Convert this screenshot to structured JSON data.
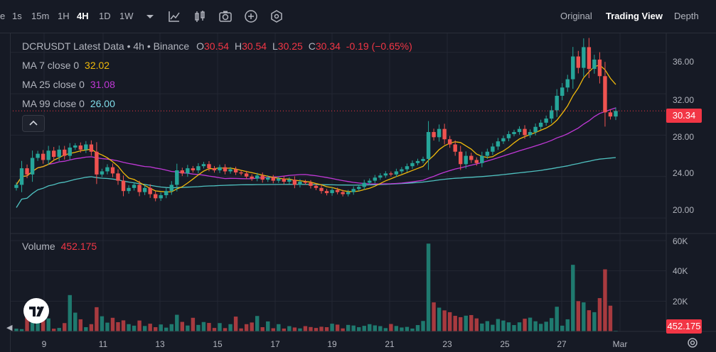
{
  "toolbar": {
    "intervals": [
      "e",
      "1s",
      "15m",
      "1H",
      "4H",
      "1D",
      "1W"
    ],
    "active_interval": "4H",
    "views": [
      "Original",
      "Trading View",
      "Depth"
    ],
    "active_view": "Trading View"
  },
  "legend": {
    "title": "DCRUSDT Latest Data • 4h • Binance",
    "o_label": "O",
    "o": "30.54",
    "h_label": "H",
    "h": "30.54",
    "l_label": "L",
    "l": "30.25",
    "c_label": "C",
    "c": "30.34",
    "change": "-0.19 (−0.65%)",
    "ma7_label": "MA 7 close 0",
    "ma7": "32.02",
    "ma25_label": "MA 25 close 0",
    "ma25": "31.08",
    "ma99_label": "MA 99 close 0",
    "ma99": "26.00",
    "volume_label": "Volume",
    "volume": "452.175"
  },
  "price_axis": {
    "ticks": [
      "36.00",
      "32.00",
      "28.00",
      "24.00",
      "20.00"
    ],
    "current": "30.34"
  },
  "volume_axis": {
    "ticks": [
      "60K",
      "40K",
      "20K"
    ],
    "current": "452.175"
  },
  "time_axis": {
    "ticks": [
      "9",
      "11",
      "13",
      "15",
      "17",
      "19",
      "21",
      "23",
      "25",
      "27",
      "Mar"
    ]
  },
  "colors": {
    "up": "#26a69a",
    "down": "#ef5350",
    "ma7": "#f0b90b",
    "ma25": "#c038d6",
    "ma99": "#4fc1c0",
    "current": "#f23645"
  },
  "chart_data": {
    "type": "candlestick",
    "title": "DCRUSDT Latest Data • 4h • Binance",
    "interval": "4h",
    "price_range": [
      18.5,
      37.9
    ],
    "volume_range": [
      0,
      60000
    ],
    "x_ticks": [
      "9",
      "11",
      "13",
      "15",
      "17",
      "19",
      "21",
      "23",
      "25",
      "27",
      "Mar"
    ],
    "y_ticks": [
      36,
      32,
      28,
      24,
      20
    ],
    "last_close": 30.34,
    "close": [
      23.2,
      24.8,
      24.2,
      25.8,
      26.2,
      25.6,
      26.5,
      25.9,
      26.6,
      26.0,
      26.8,
      27.0,
      26.6,
      27.1,
      26.4,
      24.2,
      24.5,
      24.9,
      24.3,
      23.6,
      22.6,
      22.9,
      23.2,
      22.5,
      22.9,
      22.3,
      21.9,
      22.2,
      22.6,
      23.2,
      24.6,
      24.3,
      24.8,
      24.6,
      25.0,
      25.2,
      24.8,
      24.6,
      24.9,
      24.5,
      24.7,
      24.4,
      24.3,
      24.0,
      23.8,
      24.1,
      23.7,
      23.9,
      23.6,
      23.8,
      23.5,
      23.7,
      23.2,
      23.5,
      23.4,
      23.1,
      22.9,
      22.6,
      22.4,
      22.7,
      22.5,
      22.3,
      22.5,
      22.8,
      23.0,
      23.4,
      23.6,
      23.9,
      24.1,
      24.3,
      24.2,
      24.5,
      24.7,
      25.0,
      25.3,
      25.5,
      25.7,
      28.3,
      27.8,
      28.6,
      27.6,
      27.1,
      26.4,
      25.2,
      26.0,
      25.6,
      25.3,
      26.0,
      26.4,
      26.9,
      27.4,
      27.7,
      28.1,
      28.3,
      28.6,
      28.0,
      28.3,
      28.8,
      29.2,
      29.6,
      30.4,
      31.8,
      32.6,
      33.4,
      35.6,
      34.5,
      36.5,
      34.4,
      35.3,
      33.7,
      30.2,
      29.8,
      30.34
    ],
    "volume": [
      1800,
      1500,
      9200,
      5800,
      6800,
      13200,
      8600,
      1800,
      2300,
      5500,
      24000,
      12400,
      8000,
      2800,
      4800,
      16000,
      10000,
      5800,
      9000,
      6100,
      7300,
      4800,
      3800,
      7200,
      3600,
      5100,
      2800,
      4600,
      2500,
      4800,
      11000,
      6300,
      3900,
      9000,
      4300,
      6200,
      5600,
      2300,
      5500,
      2200,
      4800,
      9800,
      2000,
      4800,
      5900,
      10200,
      2800,
      6600,
      2100,
      4800,
      1900,
      3500,
      2600,
      2000,
      3500,
      2900,
      2300,
      3100,
      2800,
      5100,
      4500,
      2000,
      4300,
      3900,
      2800,
      3700,
      4800,
      4000,
      3500,
      2200,
      4900,
      3600,
      2600,
      3000,
      1900,
      4200,
      6900,
      58000,
      19200,
      15700,
      13900,
      12700,
      10300,
      9400,
      10400,
      10800,
      8600,
      5200,
      6800,
      4400,
      8200,
      7200,
      6000,
      4200,
      6000,
      8400,
      9100,
      6700,
      5000,
      6400,
      8800,
      16300,
      3800,
      8000,
      44000,
      20000,
      19200,
      14000,
      12700,
      22000,
      41000,
      17000,
      452
    ]
  }
}
